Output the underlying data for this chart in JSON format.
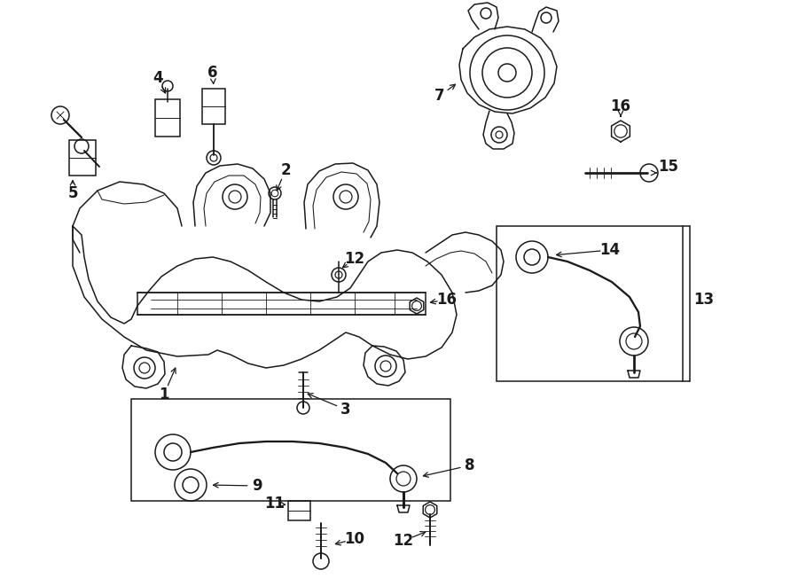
{
  "bg_color": "#ffffff",
  "line_color": "#1a1a1a",
  "lw": 1.1,
  "fig_w": 9.0,
  "fig_h": 6.61,
  "dpi": 100,
  "label_fs": 12
}
